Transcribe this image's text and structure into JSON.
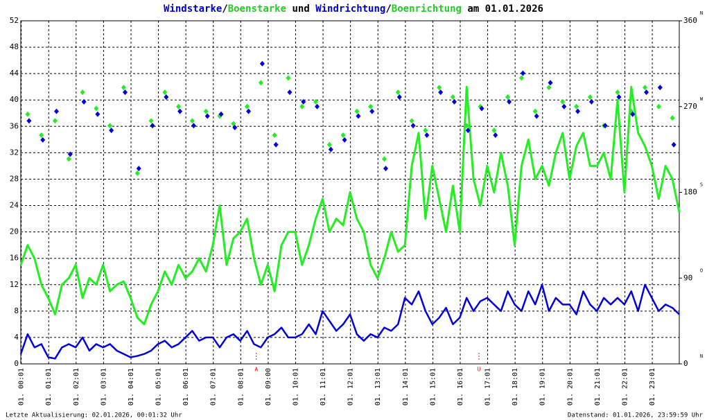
{
  "chart_data": {
    "type": "line",
    "title_parts": [
      {
        "text": "Windstarke",
        "color": "#0000cc"
      },
      {
        "text": "/",
        "color": "#000000"
      },
      {
        "text": "Boenstarke",
        "color": "#22cc22"
      },
      {
        "text": " und ",
        "color": "#000000"
      },
      {
        "text": "Windrichtung",
        "color": "#0000cc"
      },
      {
        "text": "/",
        "color": "#000000"
      },
      {
        "text": "Boenrichtung",
        "color": "#22cc22"
      },
      {
        "text": " am 01.01.2026",
        "color": "#000000"
      }
    ],
    "footer_left": "Letzte Aktualisierung: 02.01.2026, 00:01:32 Uhr",
    "footer_right": "Datenstand: 01.01.2026, 23:59:59 Uhr",
    "xlim": [
      0,
      1440
    ],
    "xticks": [
      {
        "value": 1,
        "label": "01. 00:01"
      },
      {
        "value": 61,
        "label": "01. 01:01"
      },
      {
        "value": 121,
        "label": "01. 02:01"
      },
      {
        "value": 181,
        "label": "01. 03:01"
      },
      {
        "value": 241,
        "label": "01. 04:01"
      },
      {
        "value": 301,
        "label": "01. 05:01"
      },
      {
        "value": 361,
        "label": "01. 06:01"
      },
      {
        "value": 421,
        "label": "01. 07:01"
      },
      {
        "value": 481,
        "label": "01. 08:01"
      },
      {
        "value": 541,
        "label": "01. 09:00"
      },
      {
        "value": 601,
        "label": "01. 10:01"
      },
      {
        "value": 661,
        "label": "01. 11:01"
      },
      {
        "value": 721,
        "label": "01. 12:01"
      },
      {
        "value": 781,
        "label": "01. 13:01"
      },
      {
        "value": 841,
        "label": "01. 14:01"
      },
      {
        "value": 901,
        "label": "01. 15:01"
      },
      {
        "value": 961,
        "label": "01. 16:01"
      },
      {
        "value": 1021,
        "label": "01. 17:01"
      },
      {
        "value": 1081,
        "label": "01. 18:01"
      },
      {
        "value": 1141,
        "label": "01. 19:01"
      },
      {
        "value": 1201,
        "label": "01. 20:01"
      },
      {
        "value": 1261,
        "label": "01. 21:01"
      },
      {
        "value": 1321,
        "label": "01. 22:01"
      },
      {
        "value": 1381,
        "label": "01. 23:01"
      }
    ],
    "ylim": [
      0,
      52
    ],
    "yticks": [
      0,
      4,
      8,
      12,
      16,
      20,
      24,
      28,
      32,
      36,
      40,
      44,
      48,
      52
    ],
    "y2lim": [
      0,
      360
    ],
    "y2ticks": [
      0,
      90,
      180,
      270,
      360
    ],
    "y2tick_directions": [
      "N",
      "O",
      "S",
      "W",
      "N"
    ],
    "grid": true,
    "annotations": [
      {
        "x": 515,
        "text": "A"
      },
      {
        "x": 1002,
        "text": "U"
      }
    ],
    "annotation_color": "#ff0000",
    "lines": {
      "x": [
        0,
        15,
        30,
        45,
        60,
        75,
        90,
        105,
        120,
        135,
        150,
        165,
        180,
        195,
        210,
        225,
        240,
        255,
        270,
        285,
        300,
        315,
        330,
        345,
        360,
        375,
        390,
        405,
        420,
        435,
        450,
        465,
        480,
        495,
        510,
        525,
        540,
        555,
        570,
        585,
        600,
        615,
        630,
        645,
        660,
        675,
        690,
        705,
        720,
        735,
        750,
        765,
        780,
        795,
        810,
        825,
        840,
        855,
        870,
        885,
        900,
        915,
        930,
        945,
        960,
        975,
        990,
        1005,
        1020,
        1035,
        1050,
        1065,
        1080,
        1095,
        1110,
        1125,
        1140,
        1155,
        1170,
        1185,
        1200,
        1215,
        1230,
        1245,
        1260,
        1275,
        1290,
        1305,
        1320,
        1335,
        1350,
        1365,
        1380,
        1395,
        1410,
        1425,
        1440
      ],
      "series": [
        {
          "name": "Boenstarke",
          "color": "#22ee22",
          "width": 3,
          "values": [
            15,
            18,
            16,
            12,
            10,
            7.5,
            12,
            13,
            15,
            10,
            13,
            12,
            15,
            11,
            12,
            12.5,
            10,
            7,
            6,
            9,
            11,
            14,
            12,
            15,
            13,
            14,
            16,
            14,
            18,
            24,
            15,
            19,
            20,
            22,
            16,
            12,
            15,
            11,
            18,
            20,
            20,
            15,
            18,
            22,
            25,
            20,
            22,
            21,
            26,
            22,
            20,
            15,
            13,
            16,
            20,
            17,
            18,
            30,
            35,
            22,
            30,
            25,
            20,
            27,
            20,
            42,
            28,
            24,
            30,
            26,
            32,
            27,
            18,
            30,
            34,
            28,
            30,
            27,
            32,
            35,
            28,
            33,
            35,
            30,
            30,
            32,
            28,
            40,
            26,
            42,
            35,
            33,
            30,
            25,
            30,
            28,
            23
          ]
        },
        {
          "name": "Windstarke",
          "color": "#0000dd",
          "width": 2.5,
          "values": [
            1.5,
            4.5,
            2.5,
            3,
            1,
            0.8,
            2.5,
            3,
            2.5,
            4,
            2,
            3,
            2.5,
            3,
            2,
            1.5,
            1,
            1.2,
            1.5,
            2,
            3,
            3.5,
            2.5,
            3,
            4,
            5,
            3.5,
            4,
            4,
            2.5,
            4,
            4.5,
            3.5,
            5,
            3,
            2.5,
            4,
            4.5,
            5.5,
            4,
            4,
            4.5,
            6,
            4.5,
            8,
            6.5,
            5,
            6,
            7.5,
            4.5,
            3.5,
            4.5,
            4,
            5.5,
            5,
            6,
            10,
            9,
            11,
            8,
            6,
            7,
            8.5,
            6,
            7,
            10,
            8,
            9.5,
            10,
            9,
            8,
            11,
            9,
            8,
            11,
            9,
            12,
            8,
            10,
            9,
            9,
            7.5,
            11,
            9,
            8,
            10,
            9,
            10,
            9,
            11,
            8,
            12,
            10,
            8,
            9,
            8.5,
            7.5
          ]
        }
      ]
    },
    "scatter": {
      "x": [
        15,
        45,
        75,
        105,
        135,
        165,
        195,
        225,
        255,
        285,
        315,
        345,
        375,
        405,
        435,
        465,
        495,
        525,
        555,
        585,
        615,
        645,
        675,
        705,
        735,
        765,
        795,
        825,
        855,
        885,
        915,
        945,
        975,
        1005,
        1035,
        1065,
        1095,
        1125,
        1155,
        1185,
        1215,
        1245,
        1275,
        1305,
        1335,
        1365,
        1395,
        1425
      ],
      "series": [
        {
          "name": "Boenrichtung",
          "color": "#22ee22",
          "axis": "y2",
          "values": [
            262,
            240,
            255,
            215,
            285,
            268,
            250,
            290,
            200,
            255,
            285,
            270,
            255,
            265,
            260,
            252,
            270,
            295,
            240,
            300,
            270,
            275,
            230,
            240,
            265,
            270,
            215,
            285,
            255,
            245,
            290,
            280,
            250,
            270,
            245,
            280,
            300,
            265,
            290,
            275,
            270,
            280,
            250,
            285,
            265,
            290,
            270,
            258
          ]
        },
        {
          "name": "Windrichtung",
          "color": "#0000dd",
          "axis": "y2",
          "values": [
            255,
            235,
            265,
            220,
            275,
            262,
            245,
            285,
            205,
            250,
            280,
            265,
            250,
            260,
            262,
            248,
            265,
            315,
            230,
            285,
            275,
            270,
            225,
            235,
            260,
            265,
            205,
            280,
            250,
            240,
            285,
            275,
            245,
            268,
            240,
            275,
            305,
            260,
            295,
            270,
            265,
            275,
            250,
            280,
            262,
            285,
            290,
            230
          ]
        }
      ]
    }
  }
}
